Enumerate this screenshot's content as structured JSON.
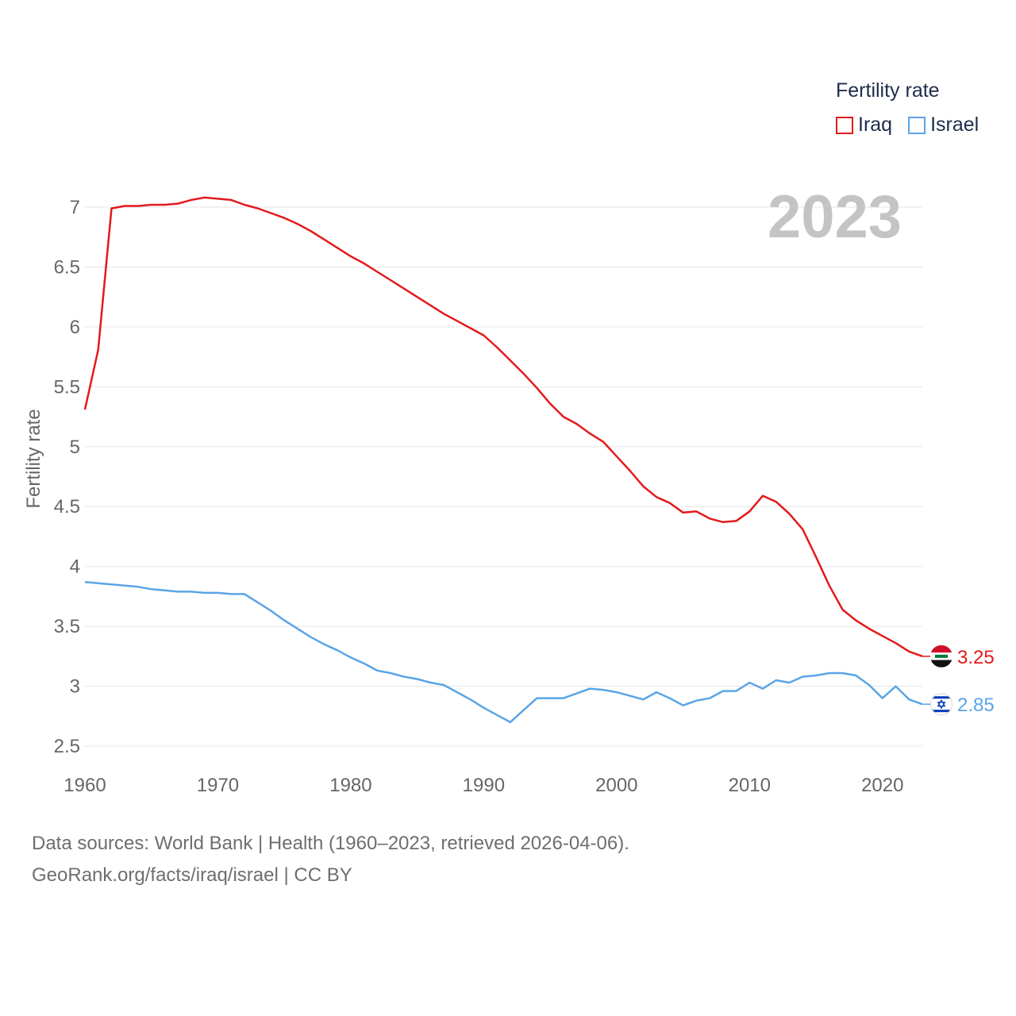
{
  "chart_data": {
    "type": "line",
    "title": "Fertility rate",
    "year_label": "2023",
    "ylabel": "Fertility rate",
    "xlabel": "",
    "xlim": [
      1960,
      2023
    ],
    "ylim": [
      2.5,
      7
    ],
    "x_ticks": [
      1960,
      1970,
      1980,
      1990,
      2000,
      2010,
      2020
    ],
    "x_tick_labels": [
      "1960",
      "1970",
      "1980",
      "1990",
      "2000",
      "2010",
      "2020"
    ],
    "y_ticks": [
      2.5,
      3,
      3.5,
      4,
      4.5,
      5,
      5.5,
      6,
      6.5,
      7
    ],
    "y_tick_labels": [
      "2.5",
      "3",
      "3.5",
      "4",
      "4.5",
      "5",
      "5.5",
      "6",
      "6.5",
      "7"
    ],
    "legend_position": "top-right",
    "x": [
      1960,
      1961,
      1962,
      1963,
      1964,
      1965,
      1966,
      1967,
      1968,
      1969,
      1970,
      1971,
      1972,
      1973,
      1974,
      1975,
      1976,
      1977,
      1978,
      1979,
      1980,
      1981,
      1982,
      1983,
      1984,
      1985,
      1986,
      1987,
      1988,
      1989,
      1990,
      1991,
      1992,
      1993,
      1994,
      1995,
      1996,
      1997,
      1998,
      1999,
      2000,
      2001,
      2002,
      2003,
      2004,
      2005,
      2006,
      2007,
      2008,
      2009,
      2010,
      2011,
      2012,
      2013,
      2014,
      2015,
      2016,
      2017,
      2018,
      2019,
      2020,
      2021,
      2022,
      2023
    ],
    "series": [
      {
        "name": "Iraq",
        "color": "#e31a1c",
        "end_label": "3.25",
        "values": [
          5.31,
          5.81,
          6.99,
          7.01,
          7.01,
          7.02,
          7.02,
          7.03,
          7.06,
          7.08,
          7.07,
          7.06,
          7.02,
          6.99,
          6.95,
          6.91,
          6.86,
          6.8,
          6.73,
          6.66,
          6.59,
          6.53,
          6.46,
          6.39,
          6.32,
          6.25,
          6.18,
          6.11,
          6.05,
          5.99,
          5.93,
          5.83,
          5.72,
          5.61,
          5.49,
          5.36,
          5.25,
          5.19,
          5.11,
          5.04,
          4.92,
          4.8,
          4.67,
          4.58,
          4.53,
          4.45,
          4.46,
          4.4,
          4.37,
          4.38,
          4.46,
          4.59,
          4.54,
          4.44,
          4.31,
          4.08,
          3.84,
          3.64,
          3.55,
          3.48,
          3.42,
          3.36,
          3.29,
          3.25
        ]
      },
      {
        "name": "Israel",
        "color": "#5aa5e6",
        "end_label": "2.85",
        "values": [
          3.87,
          3.86,
          3.85,
          3.84,
          3.83,
          3.81,
          3.8,
          3.79,
          3.79,
          3.78,
          3.78,
          3.77,
          3.77,
          3.7,
          3.63,
          3.55,
          3.48,
          3.41,
          3.35,
          3.3,
          3.24,
          3.19,
          3.13,
          3.11,
          3.08,
          3.06,
          3.03,
          3.01,
          2.95,
          2.89,
          2.82,
          2.76,
          2.7,
          2.8,
          2.9,
          2.9,
          2.9,
          2.94,
          2.98,
          2.97,
          2.95,
          2.92,
          2.89,
          2.95,
          2.9,
          2.84,
          2.88,
          2.9,
          2.96,
          2.96,
          3.03,
          2.98,
          3.05,
          3.03,
          3.08,
          3.09,
          3.11,
          3.11,
          3.09,
          3.01,
          2.9,
          3.0,
          2.89,
          2.85
        ]
      }
    ]
  },
  "source": {
    "line1": "Data sources: World Bank | Health (1960–2023, retrieved 2026-04-06).",
    "line2": "GeoRank.org/facts/iraq/israel | CC BY"
  }
}
